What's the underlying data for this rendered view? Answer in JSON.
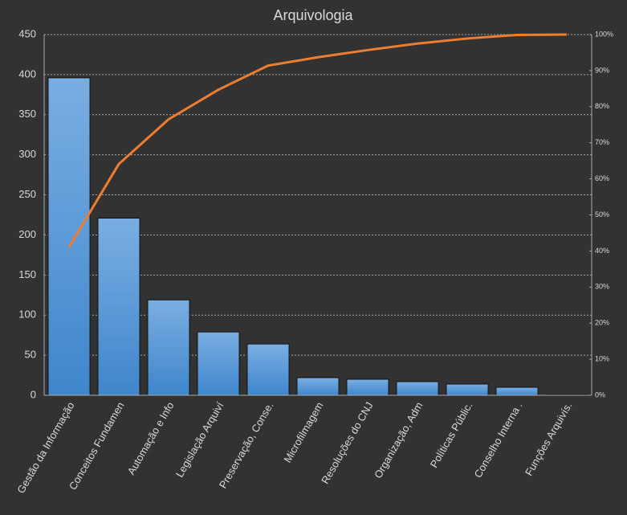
{
  "chart_data": {
    "type": "pareto",
    "title": "Arquivologia",
    "categories": [
      "Gestão da Informação",
      "Conceitos Fundamen",
      "Automação e Info",
      "Legislação Arquiví",
      "Preservação, Conse.",
      "Microfilmagem",
      "Resoluções do CNJ",
      "Organização, Adm",
      "Políticas Públic.",
      "Conselho Interna .",
      "Funções Arquivís."
    ],
    "series": [
      {
        "type": "bar",
        "color": "#5b9bd5",
        "values": [
          396,
          221,
          119,
          79,
          64,
          22,
          20,
          17,
          14,
          10,
          1
        ]
      },
      {
        "type": "line",
        "axis": "y2",
        "color": "#ed7d31",
        "values": [
          41.1,
          64.1,
          76.5,
          84.7,
          91.4,
          93.7,
          95.7,
          97.5,
          98.9,
          99.9,
          100
        ]
      }
    ],
    "ylim": [
      0,
      450
    ],
    "yticks": [
      0,
      50,
      100,
      150,
      200,
      250,
      300,
      350,
      400,
      450
    ],
    "y2lim": [
      0,
      100
    ],
    "y2ticks": [
      {
        "value": 0,
        "label": "0%"
      },
      {
        "value": 10,
        "label": "10%"
      },
      {
        "value": 20,
        "label": "20%"
      },
      {
        "value": 30,
        "label": "30%"
      },
      {
        "value": 40,
        "label": "40%"
      },
      {
        "value": 50,
        "label": "50%"
      },
      {
        "value": 60,
        "label": "60%"
      },
      {
        "value": 70,
        "label": "70%"
      },
      {
        "value": 80,
        "label": "80%"
      },
      {
        "value": 90,
        "label": "90%"
      },
      {
        "value": 100,
        "label": "100%"
      }
    ],
    "grid": true
  }
}
